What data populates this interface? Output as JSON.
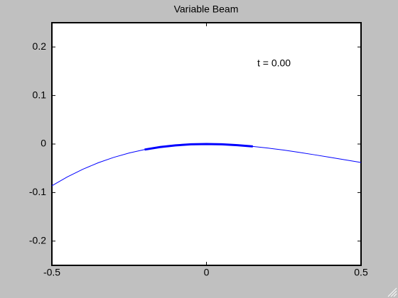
{
  "chart_data": {
    "type": "line",
    "title": "Variable Beam",
    "annotation": "t = 0.00",
    "x": [
      -0.5,
      -0.45,
      -0.4,
      -0.35,
      -0.3,
      -0.25,
      -0.2,
      -0.15,
      -0.1,
      -0.05,
      0,
      0.05,
      0.1,
      0.15,
      0.2,
      0.25,
      0.3,
      0.35,
      0.4,
      0.45,
      0.5
    ],
    "series": [
      {
        "color": "#0000ff",
        "width": 1,
        "values": [
          -0.086,
          -0.0677,
          -0.052,
          -0.0386,
          -0.0275,
          -0.0185,
          -0.0114,
          -0.0062,
          -0.0027,
          -0.0006,
          0,
          -0.0006,
          -0.0023,
          -0.005,
          -0.0084,
          -0.0125,
          -0.0171,
          -0.0222,
          -0.0274,
          -0.0327,
          -0.038
        ]
      },
      {
        "color": "#0000ff",
        "width": 3,
        "values": [
          null,
          null,
          null,
          null,
          null,
          null,
          -0.0114,
          -0.0062,
          -0.0027,
          -0.0006,
          0,
          -0.0006,
          -0.0023,
          -0.005,
          null,
          null,
          null,
          null,
          null,
          null,
          null
        ]
      }
    ],
    "xlim": [
      -0.5,
      0.5
    ],
    "ylim": [
      -0.25,
      0.25
    ],
    "xticks": [
      -0.5,
      0,
      0.5
    ],
    "yticks": [
      -0.2,
      -0.1,
      0,
      0.1,
      0.2
    ]
  }
}
